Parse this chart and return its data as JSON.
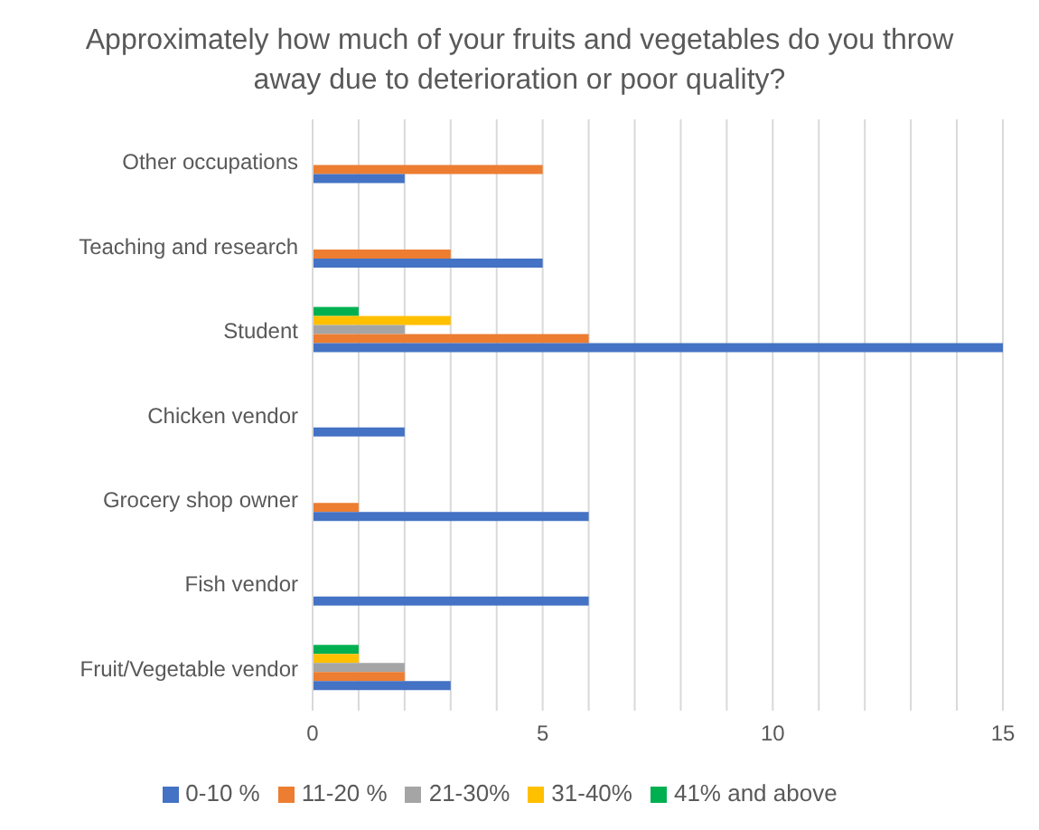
{
  "chart_data": {
    "type": "bar",
    "orientation": "horizontal",
    "title": "Approximately how much of your fruits and vegetables do you throw away due to deterioration or poor quality?",
    "categories": [
      "Other occupations",
      "Teaching and research",
      "Student",
      "Chicken vendor",
      "Grocery shop owner",
      "Fish vendor",
      "Fruit/Vegetable vendor"
    ],
    "series": [
      {
        "name": "41% and above",
        "color": "#00b050",
        "values": [
          0,
          0,
          1,
          0,
          0,
          0,
          1
        ]
      },
      {
        "name": "31-40%",
        "color": "#ffc000",
        "values": [
          0,
          0,
          3,
          0,
          0,
          0,
          1
        ]
      },
      {
        "name": "21-30%",
        "color": "#a5a5a5",
        "values": [
          0,
          0,
          2,
          0,
          0,
          0,
          2
        ]
      },
      {
        "name": "11-20 %",
        "color": "#ed7d31",
        "values": [
          5,
          3,
          6,
          0,
          1,
          0,
          2
        ]
      },
      {
        "name": "0-10 %",
        "color": "#4472c4",
        "values": [
          2,
          5,
          15,
          2,
          6,
          6,
          3
        ]
      }
    ],
    "xlim": [
      0,
      15
    ],
    "xticks": [
      0,
      {
        "value": 1,
        "label": null
      },
      {
        "value": 2,
        "label": null
      },
      {
        "value": 3,
        "label": null
      },
      {
        "value": 4,
        "label": null
      },
      5,
      {
        "value": 6,
        "label": null
      },
      {
        "value": 7,
        "label": null
      },
      {
        "value": 8,
        "label": null
      },
      {
        "value": 9,
        "label": null
      },
      10,
      {
        "value": 11,
        "label": null
      },
      {
        "value": 12,
        "label": null
      },
      {
        "value": 13,
        "label": null
      },
      {
        "value": 14,
        "label": null
      },
      15
    ],
    "grid": "x",
    "legend": "bottom"
  }
}
